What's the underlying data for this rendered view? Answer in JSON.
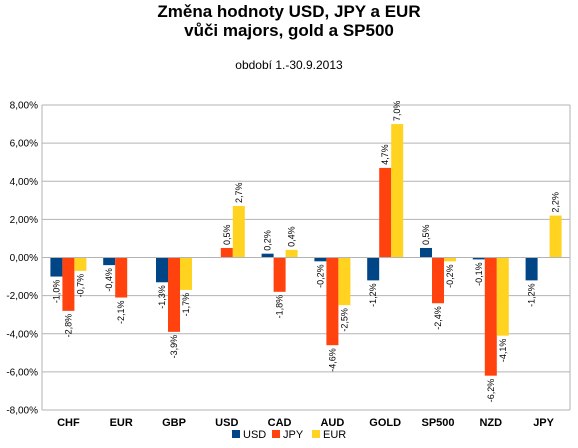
{
  "chart_data": {
    "type": "bar",
    "title": "Změna hodnoty USD, JPY a EUR",
    "title_line2": "vůči majors, gold a SP500",
    "subtitle": "období  1.-30.9.2013",
    "categories": [
      "CHF",
      "EUR",
      "GBP",
      "USD",
      "CAD",
      "AUD",
      "GOLD",
      "SP500",
      "NZD",
      "JPY"
    ],
    "series": [
      {
        "name": "USD",
        "color": "#004586",
        "values": [
          -1.0,
          -0.4,
          -1.3,
          null,
          0.2,
          -0.2,
          -1.2,
          0.5,
          -0.1,
          -1.2
        ],
        "labels": [
          "-1,0%",
          "-0,4%",
          "-1,3%",
          "",
          "0,2%",
          "-0,2%",
          "-1,2%",
          "0,5%",
          "-0,1%",
          "-1,2%"
        ]
      },
      {
        "name": "JPY",
        "color": "#ff420e",
        "values": [
          -2.8,
          -2.1,
          -3.9,
          0.5,
          -1.8,
          -4.6,
          4.7,
          -2.4,
          -6.2,
          null
        ],
        "labels": [
          "-2,8%",
          "-2,1%",
          "-3,9%",
          "0,5%",
          "-1,8%",
          "-4,6%",
          "4,7%",
          "-2,4%",
          "-6,2%",
          ""
        ]
      },
      {
        "name": "EUR",
        "color": "#ffd320",
        "values": [
          -0.7,
          null,
          -1.7,
          2.7,
          0.4,
          -2.5,
          7.0,
          -0.2,
          -4.1,
          2.2
        ],
        "labels": [
          "-0,7%",
          "",
          "-1,7%",
          "2,7%",
          "0,4%",
          "-2,5%",
          "7,0%",
          "-0,2%",
          "-4,1%",
          "2,2%"
        ]
      }
    ],
    "ylim": [
      -8,
      8
    ],
    "yticks": [
      8,
      6,
      4,
      2,
      0,
      -2,
      -4,
      -6,
      -8
    ],
    "ytick_labels": [
      "8,00%",
      "6,00%",
      "4,00%",
      "2,00%",
      "0,00%",
      "-2,00%",
      "-4,00%",
      "-6,00%",
      "-8,00%"
    ],
    "grid": true,
    "legend_position": "bottom"
  }
}
